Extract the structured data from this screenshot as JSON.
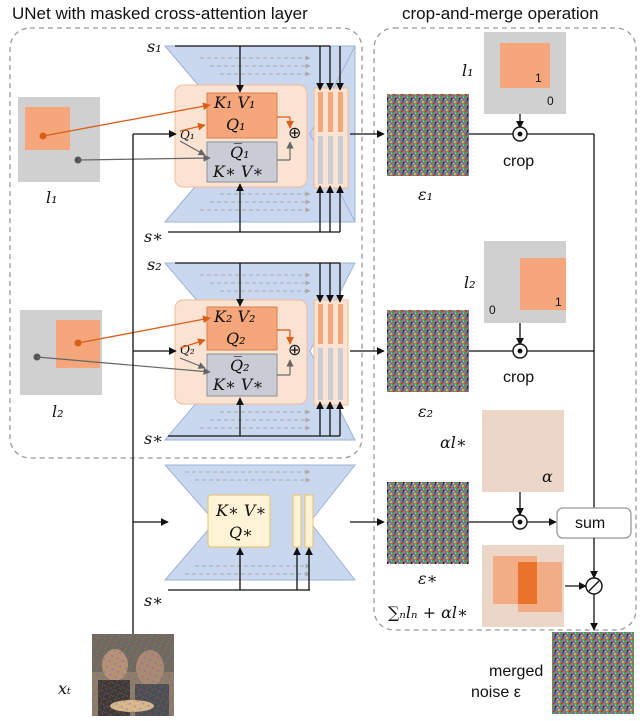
{
  "titles": {
    "left": "UNet with masked cross-attention layer",
    "right": "crop-and-merge operation"
  },
  "prompts": {
    "s1": "s₁",
    "s2": "s₂",
    "s_star": "s∗"
  },
  "layouts": {
    "l1": "l₁",
    "l2": "l₂",
    "l1_mask_one": "1",
    "l1_mask_zero": "0",
    "l2_mask_one": "1",
    "l2_mask_zero": "0",
    "alpha_l": "αl∗",
    "alpha": "α"
  },
  "attention": {
    "block1_kv": "K₁  V₁",
    "block1_q": "Q₁",
    "block1_qin": "Q₁",
    "block1_qbar": "Q̅₁",
    "block1_kvstar": "K∗  V∗",
    "block2_kv": "K₂  V₂",
    "block2_q": "Q₂",
    "block2_qin": "Q₂",
    "block2_qbar": "Q̅₂",
    "block2_kvstar": "K∗  V∗",
    "block3_kv": "K∗  V∗",
    "block3_q": "Q∗",
    "plus": "⊕"
  },
  "noise": {
    "eps1": "ε₁",
    "eps2": "ε₂",
    "eps_star": "ε∗",
    "merged_line1": "merged",
    "merged_line2": "noise ε"
  },
  "ops": {
    "crop1": "crop",
    "crop2": "crop",
    "sum": "sum",
    "dot": "⊙",
    "div": "⊘",
    "normalizer": "∑ₙlₙ + αl∗"
  },
  "input": {
    "xt": "xₜ"
  },
  "colors": {
    "unet_blue": "#c9d7ef",
    "attn_orange": "#fbe3d4",
    "mask_orange": "#f5a67a",
    "layout_gray": "#d0d0d0",
    "arrow_orange": "#d95f19",
    "arrow_gray": "#666666"
  }
}
